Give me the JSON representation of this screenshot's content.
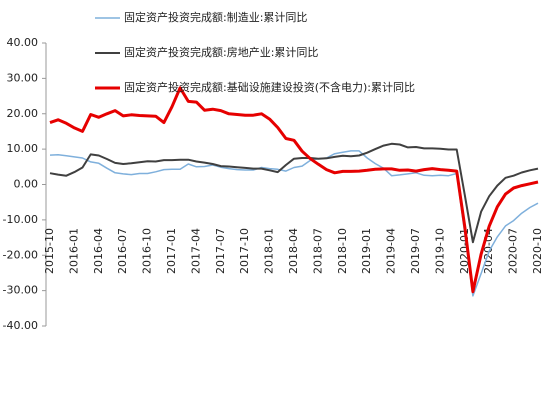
{
  "chart_data": {
    "type": "line",
    "categories": [
      "2015-10",
      null,
      null,
      "2016-01",
      null,
      null,
      "2016-04",
      null,
      null,
      "2016-07",
      null,
      null,
      "2016-10",
      null,
      null,
      "2017-01",
      null,
      null,
      "2017-04",
      null,
      null,
      "2017-07",
      null,
      null,
      "2017-10",
      null,
      null,
      "2018-01",
      null,
      null,
      "2018-04",
      null,
      null,
      "2018-07",
      null,
      null,
      "2018-10",
      null,
      null,
      "2019-01",
      null,
      null,
      "2019-04",
      null,
      null,
      "2019-07",
      null,
      null,
      "2019-10",
      null,
      null,
      "2020-01",
      null,
      null,
      "2020-04",
      null,
      null,
      "2020-07",
      null,
      null,
      "2020-10"
    ],
    "series": [
      {
        "name": "固定资产投资完成额:制造业:累计同比",
        "color": "#7fb0dc",
        "width": 1.5,
        "values": [
          8.3,
          8.4,
          8.1,
          7.8,
          7.5,
          6.4,
          6.0,
          4.6,
          3.3,
          3.0,
          2.8,
          3.1,
          3.1,
          3.6,
          4.2,
          4.3,
          4.3,
          5.8,
          5.0,
          5.1,
          5.5,
          4.9,
          4.5,
          4.2,
          4.1,
          4.1,
          4.8,
          4.5,
          4.3,
          3.8,
          4.8,
          5.2,
          6.8,
          7.3,
          7.5,
          8.7,
          9.1,
          9.5,
          9.5,
          7.5,
          5.9,
          4.6,
          2.5,
          2.7,
          3.0,
          3.3,
          2.6,
          2.5,
          2.6,
          2.5,
          3.1,
          -14,
          -31.5,
          -25.2,
          -18.8,
          -14.8,
          -11.7,
          -10.2,
          -8.1,
          -6.5,
          -5.3
        ]
      },
      {
        "name": "固定资产投资完成额:房地产业:累计同比",
        "color": "#404040",
        "width": 2,
        "values": [
          3.2,
          2.8,
          2.5,
          3.5,
          4.8,
          8.5,
          8.2,
          7.2,
          6.1,
          5.8,
          6.0,
          6.3,
          6.6,
          6.5,
          6.9,
          6.9,
          7.0,
          7.0,
          6.5,
          6.2,
          5.8,
          5.2,
          5.1,
          4.9,
          4.7,
          4.5,
          4.5,
          4.0,
          3.5,
          5.5,
          7.3,
          7.5,
          7.5,
          7.3,
          7.4,
          7.8,
          8.1,
          8.0,
          8.2,
          9.0,
          10.0,
          11.0,
          11.5,
          11.3,
          10.5,
          10.6,
          10.2,
          10.2,
          10.1,
          9.9,
          9.9,
          -3,
          -16.3,
          -7.7,
          -3.3,
          -0.3,
          1.9,
          2.5,
          3.4,
          4.0,
          4.5
        ]
      },
      {
        "name": "固定资产投资完成额:基础设施建设投资(不含电力):累计同比",
        "color": "#e60000",
        "width": 3,
        "values": [
          17.5,
          18.3,
          17.3,
          16.0,
          15.0,
          19.8,
          19.0,
          20.0,
          20.9,
          19.4,
          19.7,
          19.5,
          19.4,
          19.3,
          17.5,
          22,
          27.3,
          23.5,
          23.3,
          21,
          21.3,
          20.9,
          20,
          19.8,
          19.6,
          19.6,
          20.0,
          18.5,
          16.1,
          13,
          12.5,
          9.4,
          7.3,
          5.7,
          4.2,
          3.3,
          3.7,
          3.7,
          3.8,
          4.0,
          4.3,
          4.4,
          4.4,
          4.0,
          4.1,
          3.8,
          4.2,
          4.5,
          4.2,
          4.0,
          3.8,
          -12,
          -30.3,
          -19.7,
          -11.8,
          -6.3,
          -2.7,
          -1.0,
          -0.3,
          0.2,
          0.7
        ]
      }
    ],
    "ylim": [
      -40,
      40
    ],
    "yticks": [
      {
        "value": 40,
        "label": "40.00"
      },
      {
        "value": 30,
        "label": "30.00"
      },
      {
        "value": 20,
        "label": "20.00"
      },
      {
        "value": 10,
        "label": "10.00"
      },
      {
        "value": 0,
        "label": "0.00"
      },
      {
        "value": -10,
        "label": "-10.00"
      },
      {
        "value": -20,
        "label": "-20.00"
      },
      {
        "value": -30,
        "label": "-30.00"
      },
      {
        "value": -40,
        "label": "-40.00"
      }
    ],
    "legend": "top"
  }
}
